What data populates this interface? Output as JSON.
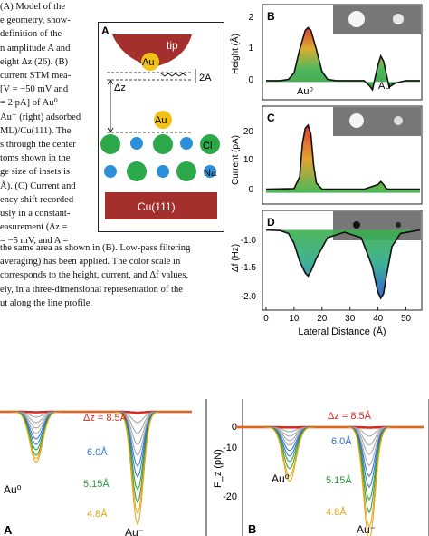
{
  "caption": {
    "lines_top": [
      "(A) Model of the",
      "e geometry, show-",
      "definition of the",
      "n amplitude A and",
      "eight Δz (26). (B)",
      "current STM mea-",
      "[V = −50 mV and",
      "= 2 pA] of Au⁰",
      "Au⁻ (right) adsorbed",
      "ML)/Cu(111). The",
      "s through the center",
      "toms shown in the",
      "ge size of insets is",
      "Å). (C) Current and",
      "ency shift recorded",
      "usly in a constant-",
      "easurement (Δz =",
      "= −5 mV, and A ="
    ],
    "lines_bottom": [
      "the same area as shown in (B). Low-pass filtering",
      "averaging) has been applied. The color scale in",
      "corresponds to the height, current, and Δf values,",
      "ely, in a three-dimensional representation of the",
      "ut along the line profile."
    ]
  },
  "panel_a": {
    "label": "A",
    "tip_label": "tip",
    "au_tip_label": "Au",
    "amplitude_label": "2A",
    "dz_label": "Δz",
    "au_adatom_label": "Au",
    "cl_label": "Cl",
    "na_label": "Na",
    "substrate_label": "Cu(111)"
  },
  "panel_b": {
    "label": "B",
    "ylabel": "Height (Å)",
    "yticks": [
      "2",
      "1",
      "0"
    ],
    "annot_left": "Au⁰",
    "annot_right": "Au⁻"
  },
  "panel_c": {
    "label": "C",
    "ylabel": "Current (pA)",
    "yticks": [
      "20",
      "10",
      "0"
    ]
  },
  "panel_d": {
    "label": "D",
    "ylabel": "Δf (Hz)",
    "yticks": [
      "-1.0",
      "-1.5",
      "-2.0"
    ],
    "xlabel": "Lateral Distance (Å)",
    "xticks": [
      "0",
      "10",
      "20",
      "30",
      "40",
      "50"
    ]
  },
  "bottom_left": {
    "label": "A",
    "dz_top": "Δz = 8.5Å",
    "dz_mid": "6.0Å",
    "dz_low": "5.15Å",
    "dz_min": "4.8Å",
    "annot_left": "Au⁰",
    "annot_right": "Au⁻"
  },
  "bottom_right": {
    "label": "B",
    "ylabel": "F_z (pN)",
    "yticks": [
      "0",
      "-10",
      "-20"
    ],
    "dz_top": "Δz = 8.5Å",
    "dz_mid": "6.0Å",
    "dz_low": "5.15Å",
    "dz_min": "4.8Å",
    "annot_left": "Au⁰",
    "annot_right": "Au⁻"
  },
  "chart_data": [
    {
      "type": "line",
      "title": "",
      "xlabel": "Lateral Distance (Å)",
      "ylabel": "Height (Å)",
      "xlim": [
        0,
        55
      ],
      "ylim": [
        -0.6,
        2.7
      ],
      "x": [
        0,
        5,
        8,
        10,
        12,
        14,
        15,
        16,
        18,
        20,
        22,
        25,
        30,
        35,
        37,
        38,
        40,
        41,
        42,
        44,
        46,
        50,
        55
      ],
      "series": [
        {
          "values": [
            0,
            0,
            0.05,
            0.3,
            1.2,
            1.95,
            2.05,
            1.95,
            1.2,
            0.35,
            0.05,
            0,
            0,
            0,
            -0.2,
            -0.35,
            0.6,
            0.95,
            0.75,
            -0.25,
            -0.1,
            0,
            0
          ]
        }
      ]
    },
    {
      "type": "line",
      "title": "",
      "xlabel": "Lateral Distance (Å)",
      "ylabel": "Current (pA)",
      "xlim": [
        0,
        55
      ],
      "ylim": [
        -2,
        26
      ],
      "x": [
        0,
        10,
        12,
        13,
        14,
        15,
        16,
        17,
        18,
        20,
        25,
        35,
        40,
        41,
        42,
        43,
        44,
        50,
        55
      ],
      "series": [
        {
          "values": [
            2,
            2.2,
            6,
            17,
            22,
            23,
            20,
            10,
            4,
            2,
            2,
            2,
            3.5,
            4.5,
            3.5,
            2.2,
            2,
            2,
            2
          ]
        }
      ]
    },
    {
      "type": "line",
      "title": "",
      "xlabel": "Lateral Distance (Å)",
      "ylabel": "Δf (Hz)",
      "xlim": [
        0,
        55
      ],
      "ylim": [
        -2.05,
        -0.45
      ],
      "x": [
        0,
        5,
        8,
        10,
        12,
        14,
        15,
        16,
        18,
        22,
        28,
        34,
        38,
        40,
        41,
        42,
        43,
        45,
        48,
        55
      ],
      "series": [
        {
          "values": [
            -0.72,
            -0.73,
            -0.78,
            -0.95,
            -1.25,
            -1.45,
            -1.5,
            -1.42,
            -1.2,
            -0.85,
            -0.76,
            -0.85,
            -1.35,
            -1.78,
            -1.88,
            -1.8,
            -1.5,
            -1.0,
            -0.78,
            -0.72
          ]
        }
      ]
    },
    {
      "type": "line",
      "title": "",
      "xlabel": "",
      "ylabel": "F_z (pN)",
      "ylim": [
        -29,
        2
      ],
      "series": [
        {
          "name": "Δz = 8.5Å",
          "values": [
            0,
            -0.3,
            0,
            -0.5,
            0
          ]
        },
        {
          "name": "6.0Å",
          "values": [
            0,
            -4,
            0,
            -7,
            0
          ]
        },
        {
          "name": "5.15Å",
          "values": [
            0,
            -8,
            0,
            -16,
            0
          ]
        },
        {
          "name": "4.8Å",
          "values": [
            0,
            -11,
            0,
            -25,
            0
          ]
        }
      ]
    }
  ]
}
